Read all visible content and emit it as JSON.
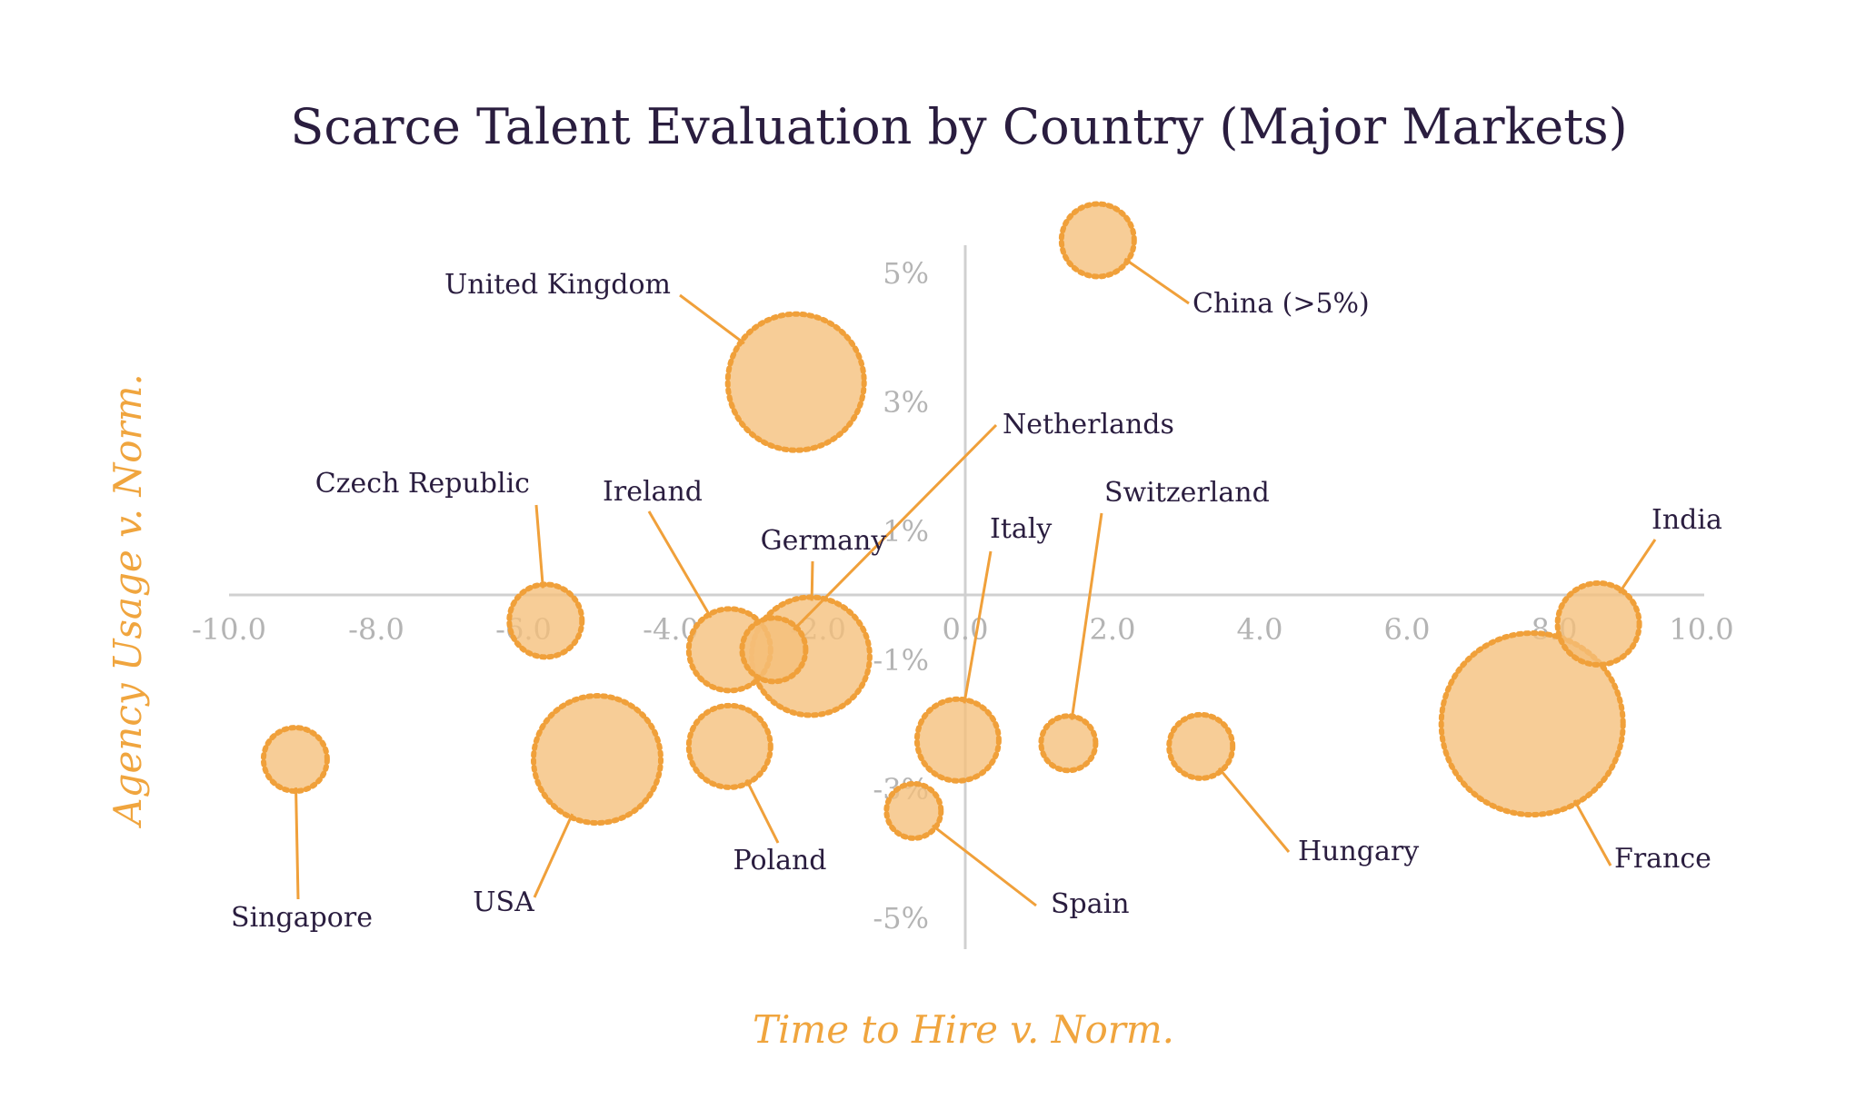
{
  "chart_data": {
    "type": "scatter",
    "title": "Scarce Talent Evaluation by Country (Major Markets)",
    "xlabel": "Time to Hire v. Norm.",
    "ylabel": "Agency Usage v. Norm.",
    "xlim": [
      -10.0,
      10.0
    ],
    "ylim": [
      -5,
      5
    ],
    "x_ticks": [
      "-10.0",
      "-8.0",
      "-6.0",
      "-4.0",
      "-2.0",
      "0.0",
      "2.0",
      "4.0",
      "6.0",
      "8.0",
      "10.0"
    ],
    "y_ticks": [
      "5%",
      "3%",
      "1%",
      "-1%",
      "-3%",
      "-5%"
    ],
    "grid": false,
    "legend": "none",
    "colors": {
      "bubble_fill": "#f5bf7a",
      "bubble_stroke": "#f0a03a",
      "leader": "#f0a03a",
      "axis_line": "#d0d0d0",
      "tick_text": "#b4b4b4",
      "label_text": "#2a1d3f",
      "axis_title": "#f0a53e"
    },
    "points": [
      {
        "name": "China (>5%)",
        "x": 1.8,
        "y": 5.5,
        "size": 0.8
      },
      {
        "name": "United Kingdom",
        "x": -2.3,
        "y": 3.3,
        "size": 1.5
      },
      {
        "name": "Czech Republic",
        "x": -5.7,
        "y": -0.4,
        "size": 0.8
      },
      {
        "name": "Ireland",
        "x": -3.2,
        "y": -0.85,
        "size": 0.9
      },
      {
        "name": "Germany",
        "x": -2.1,
        "y": -0.95,
        "size": 1.3
      },
      {
        "name": "Netherlands",
        "x": -2.6,
        "y": -0.85,
        "size": 0.7
      },
      {
        "name": "Italy",
        "x": -0.1,
        "y": -2.25,
        "size": 0.9
      },
      {
        "name": "Switzerland",
        "x": 1.4,
        "y": -2.3,
        "size": 0.6
      },
      {
        "name": "India",
        "x": 8.6,
        "y": -0.45,
        "size": 0.9
      },
      {
        "name": "Singapore",
        "x": -9.1,
        "y": -2.55,
        "size": 0.7
      },
      {
        "name": "USA",
        "x": -5.0,
        "y": -2.55,
        "size": 1.4
      },
      {
        "name": "Poland",
        "x": -3.2,
        "y": -2.35,
        "size": 0.9
      },
      {
        "name": "Spain",
        "x": -0.7,
        "y": -3.35,
        "size": 0.6
      },
      {
        "name": "Hungary",
        "x": 3.2,
        "y": -2.35,
        "size": 0.7
      },
      {
        "name": "France",
        "x": 7.7,
        "y": -2.0,
        "size": 2.0
      }
    ]
  }
}
